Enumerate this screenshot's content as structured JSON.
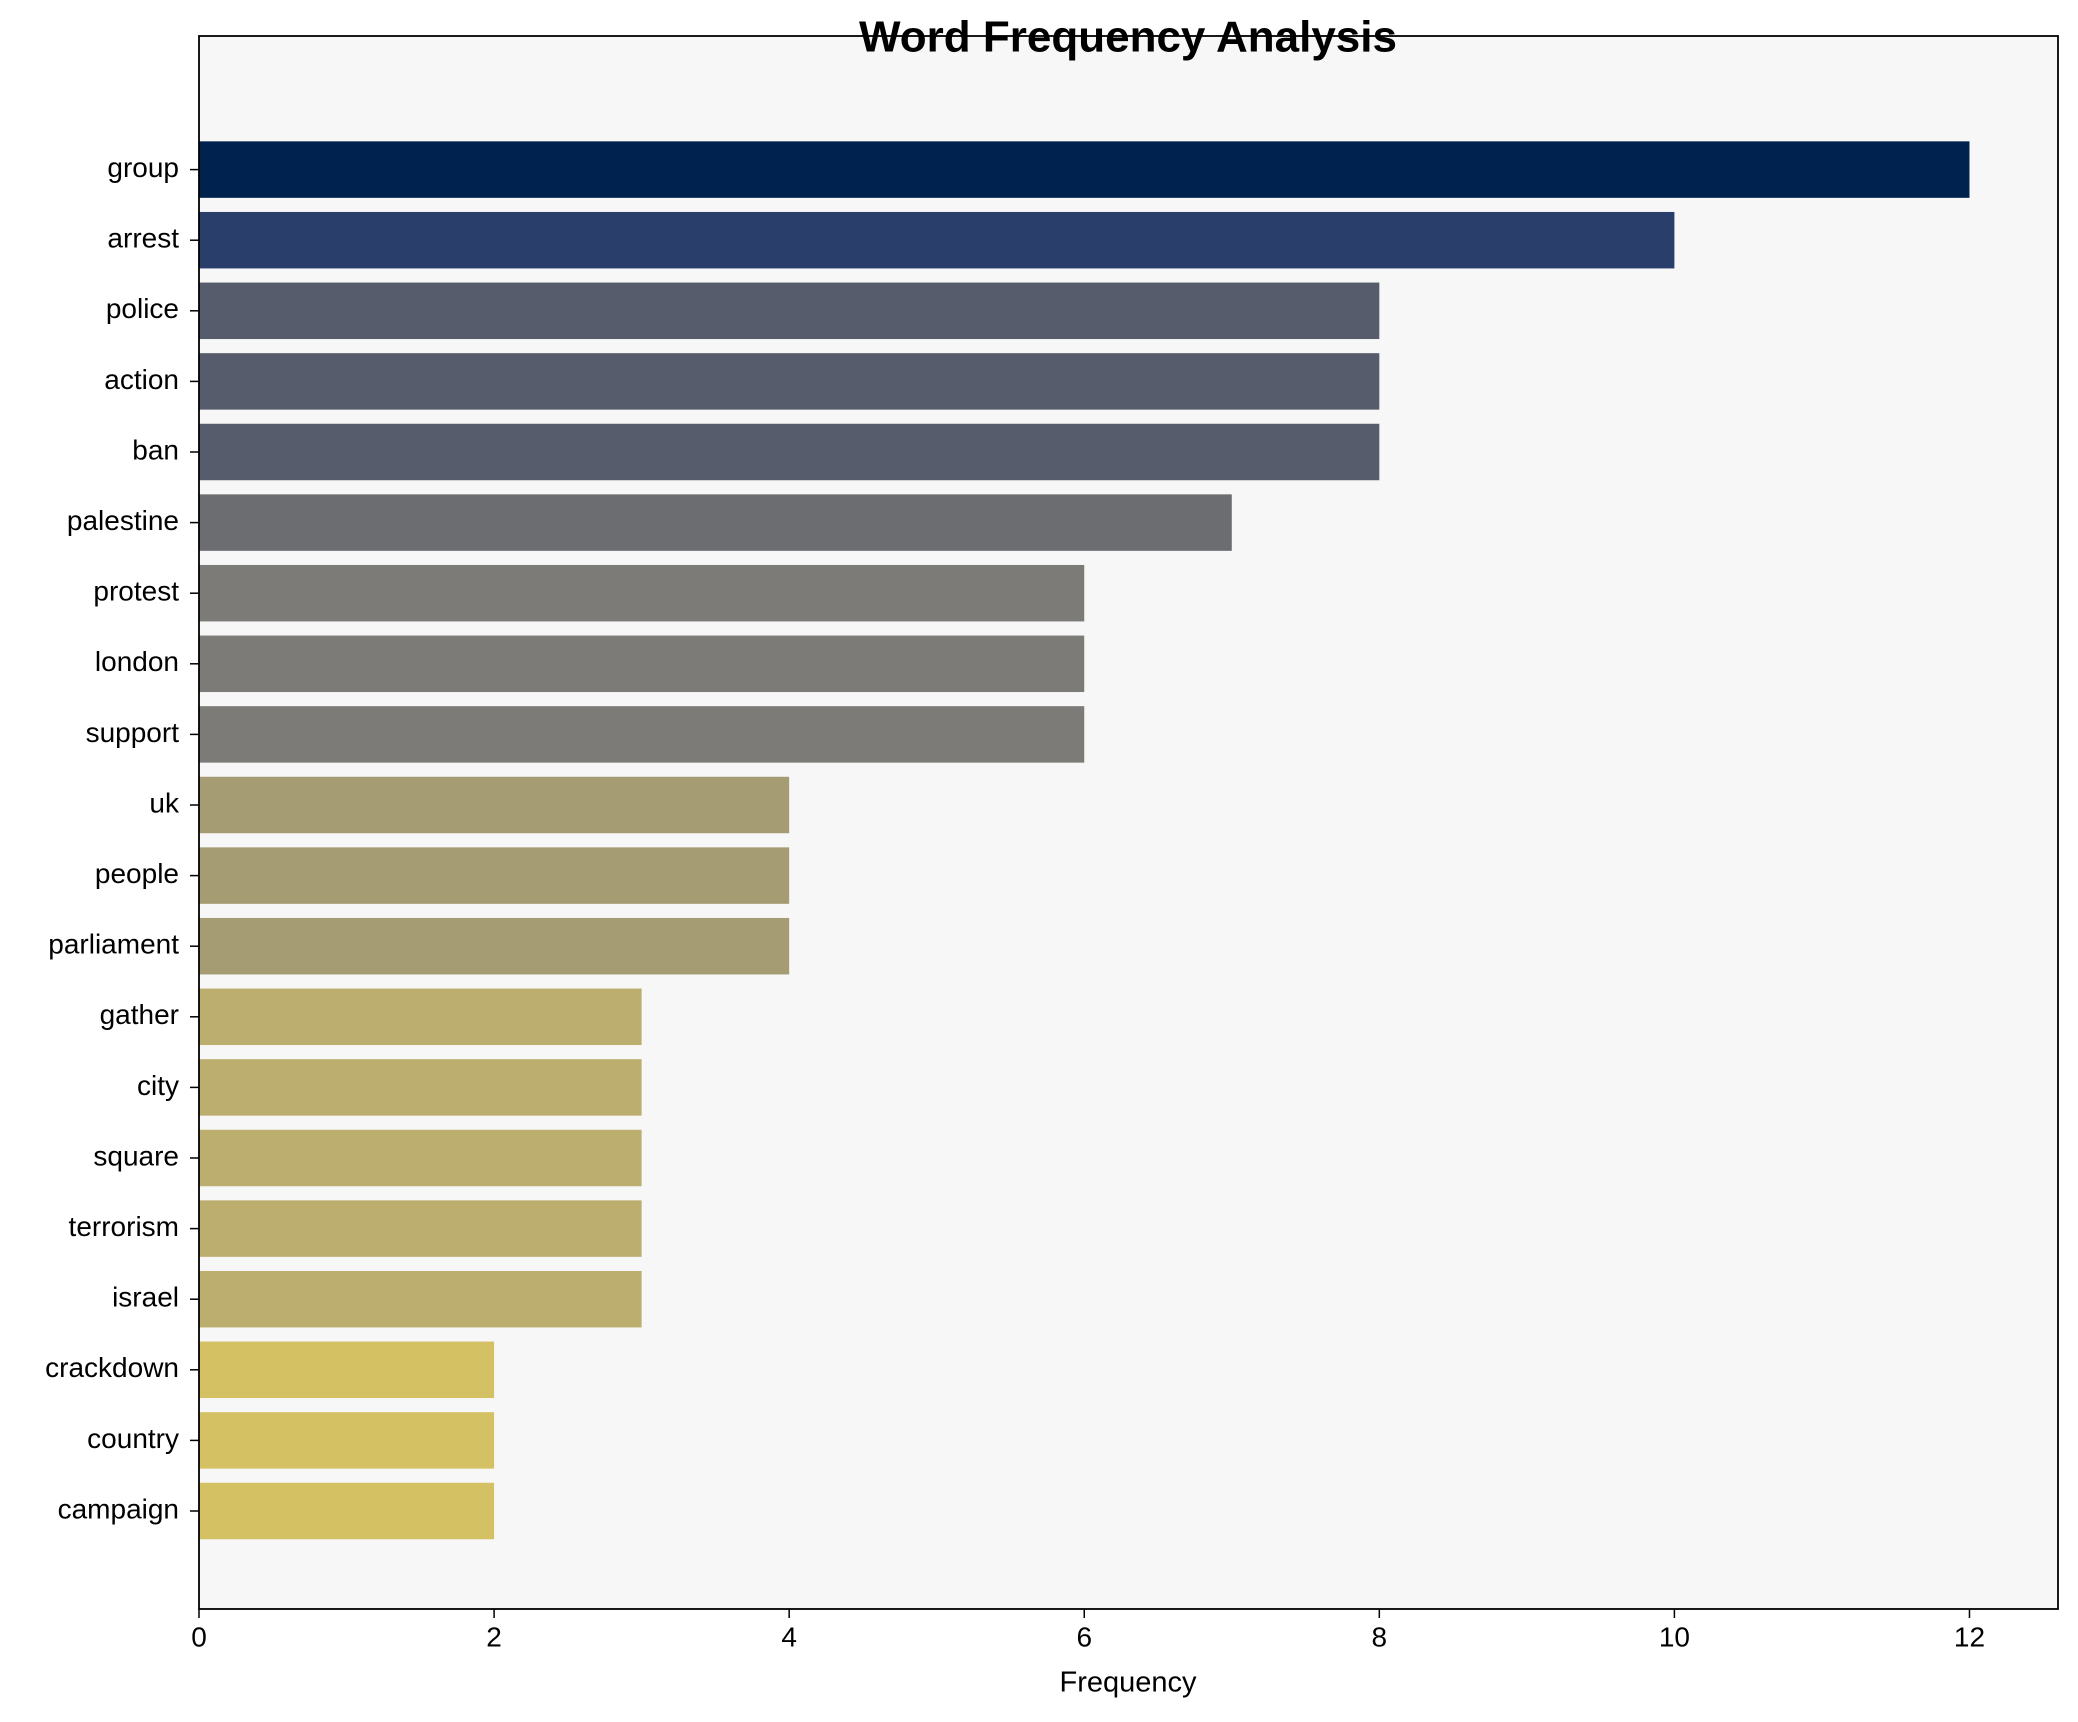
{
  "chart_data": {
    "type": "barh",
    "title": "Word Frequency Analysis",
    "xlabel": "Frequency",
    "categories": [
      "group",
      "arrest",
      "police",
      "action",
      "ban",
      "palestine",
      "protest",
      "london",
      "support",
      "uk",
      "people",
      "parliament",
      "gather",
      "city",
      "square",
      "terrorism",
      "israel",
      "crackdown",
      "country",
      "campaign"
    ],
    "values": [
      12,
      10,
      8,
      8,
      8,
      7,
      6,
      6,
      6,
      4,
      4,
      4,
      3,
      3,
      3,
      3,
      3,
      2,
      2,
      2
    ],
    "colors": [
      "#00224e",
      "#2a3e6c",
      "#575c6d",
      "#575c6d",
      "#575c6d",
      "#6c6d70",
      "#7c7b78",
      "#7c7b78",
      "#7c7b78",
      "#a59c74",
      "#a59c74",
      "#a59c74",
      "#bcae6e",
      "#bcae6e",
      "#bcae6e",
      "#bcae6e",
      "#bcae6e",
      "#d3c164",
      "#d3c164",
      "#d3c164"
    ],
    "xlim": [
      0,
      12.6
    ],
    "xticks": [
      0,
      2,
      4,
      6,
      8,
      10,
      12
    ],
    "background": "#f7f7f7"
  }
}
